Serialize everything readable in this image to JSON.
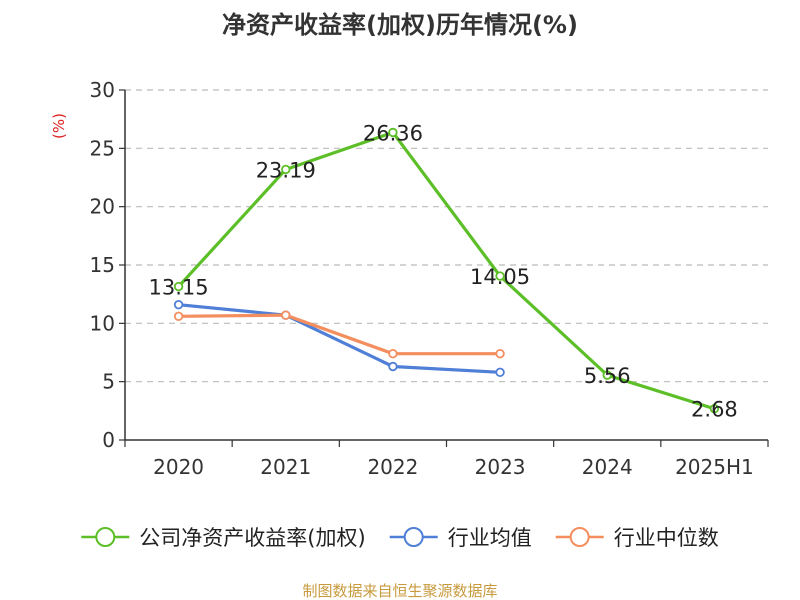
{
  "chart_data": {
    "type": "line",
    "title": "净资产收益率(加权)历年情况(%)",
    "ylabel": "(%)",
    "categories": [
      "2020",
      "2021",
      "2022",
      "2023",
      "2024",
      "2025H1"
    ],
    "ylim": [
      0,
      30
    ],
    "yticks": [
      0,
      5,
      10,
      15,
      20,
      25,
      30
    ],
    "grid": true,
    "legend_position": "bottom",
    "series": [
      {
        "name": "公司净资产收益率(加权)",
        "color": "#5cbf28",
        "values": [
          13.15,
          23.19,
          26.36,
          14.05,
          5.56,
          2.68
        ],
        "labels": [
          "13.15",
          "23.19",
          "26.36",
          "14.05",
          "5.56",
          "2.68"
        ],
        "show_labels": true
      },
      {
        "name": "行业均值",
        "color": "#4f7fd6",
        "values": [
          11.6,
          10.7,
          6.3,
          5.8,
          null,
          null
        ],
        "show_labels": false
      },
      {
        "name": "行业中位数",
        "color": "#f48e5e",
        "values": [
          10.6,
          10.7,
          7.4,
          7.4,
          null,
          null
        ],
        "show_labels": false
      }
    ]
  },
  "footer": {
    "source": "制图数据来自恒生聚源数据库"
  }
}
